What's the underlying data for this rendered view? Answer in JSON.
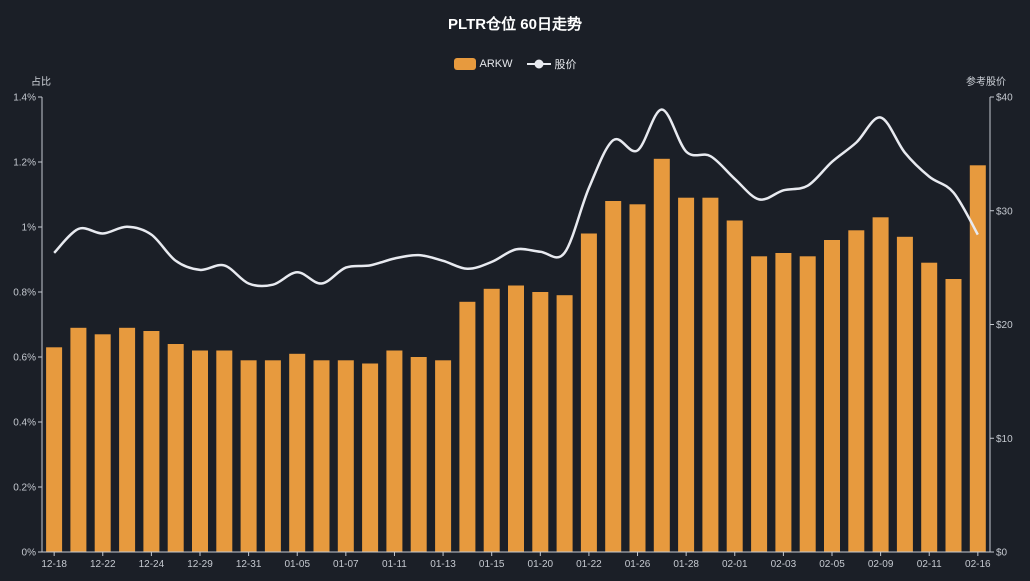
{
  "title": "PLTR仓位 60日走势",
  "legend": [
    {
      "label": "ARKW",
      "type": "bar",
      "color": "#e79a3e"
    },
    {
      "label": "股价",
      "type": "line",
      "color": "#e8eaf0"
    }
  ],
  "axes": {
    "left_name": "占比",
    "right_name": "参考股价",
    "left_ticks": [
      "0%",
      "0.2%",
      "0.4%",
      "0.6%",
      "0.8%",
      "1%",
      "1.2%",
      "1.4%"
    ],
    "right_ticks": [
      "$0",
      "$10",
      "$20",
      "$30",
      "$40"
    ]
  },
  "colors": {
    "background": "#1b1f27",
    "bar": "#e79a3e",
    "line": "#e8eaf0",
    "axis": "#c5c9d0"
  },
  "chart_data": {
    "type": "bar",
    "title": "PLTR仓位 60日走势",
    "xlabel": "",
    "ylabel": "占比",
    "y2label": "参考股价",
    "ylim": [
      0,
      1.4
    ],
    "y2lim": [
      0,
      40
    ],
    "grid": false,
    "legend_position": "top",
    "x_tick_labels": [
      "12-18",
      "12-22",
      "12-24",
      "12-29",
      "12-31",
      "01-05",
      "01-07",
      "01-11",
      "01-13",
      "01-15",
      "01-20",
      "01-22",
      "01-26",
      "01-28",
      "02-01",
      "02-03",
      "02-05",
      "02-09",
      "02-11",
      "02-16"
    ],
    "categories": [
      "c1",
      "c2",
      "c3",
      "c4",
      "c5",
      "c6",
      "c7",
      "c8",
      "c9",
      "c10",
      "c11",
      "c12",
      "c13",
      "c14",
      "c15",
      "c16",
      "c17",
      "c18",
      "c19",
      "c20",
      "c21",
      "c22",
      "c23",
      "c24",
      "c25",
      "c26",
      "c27",
      "c28",
      "c29",
      "c30",
      "c31",
      "c32",
      "c33",
      "c34",
      "c35",
      "c36",
      "c37",
      "c38",
      "c39"
    ],
    "series": [
      {
        "name": "ARKW",
        "type": "bar",
        "axis": "left",
        "unit": "%",
        "values": [
          0.63,
          0.69,
          0.67,
          0.69,
          0.68,
          0.64,
          0.62,
          0.62,
          0.59,
          0.59,
          0.61,
          0.59,
          0.59,
          0.58,
          0.62,
          0.6,
          0.59,
          0.77,
          0.81,
          0.82,
          0.8,
          0.79,
          0.98,
          1.08,
          1.07,
          1.21,
          1.09,
          1.09,
          1.02,
          0.91,
          0.92,
          0.91,
          0.96,
          0.99,
          1.03,
          0.97,
          0.89,
          0.84,
          1.19
        ]
      },
      {
        "name": "股价",
        "type": "line",
        "axis": "right",
        "unit": "$",
        "values": [
          26.3,
          28.4,
          28.0,
          28.6,
          27.9,
          25.6,
          24.8,
          25.2,
          23.6,
          23.5,
          24.6,
          23.6,
          25.0,
          25.2,
          25.8,
          26.1,
          25.6,
          24.9,
          25.5,
          26.6,
          26.4,
          26.3,
          32.0,
          36.2,
          35.3,
          38.9,
          35.2,
          34.8,
          32.8,
          31.0,
          31.8,
          32.2,
          34.3,
          36.0,
          38.2,
          35.1,
          33.0,
          31.6,
          27.9
        ]
      }
    ]
  }
}
